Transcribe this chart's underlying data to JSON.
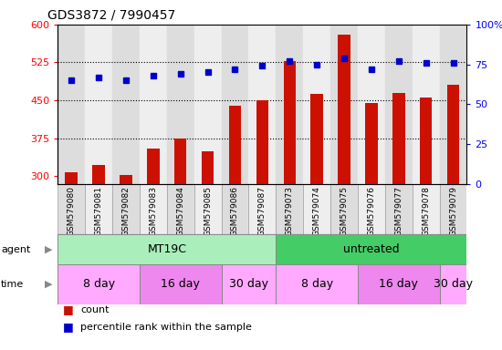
{
  "title": "GDS3872 / 7990457",
  "samples": [
    "GSM579080",
    "GSM579081",
    "GSM579082",
    "GSM579083",
    "GSM579084",
    "GSM579085",
    "GSM579086",
    "GSM579087",
    "GSM579073",
    "GSM579074",
    "GSM579075",
    "GSM579076",
    "GSM579077",
    "GSM579078",
    "GSM579079"
  ],
  "counts": [
    308,
    322,
    302,
    355,
    375,
    350,
    440,
    450,
    527,
    463,
    580,
    445,
    465,
    455,
    480
  ],
  "percentile": [
    65,
    67,
    65,
    68,
    69,
    70,
    72,
    74,
    77,
    75,
    79,
    72,
    77,
    76,
    76
  ],
  "ylim_left": [
    285,
    600
  ],
  "ylim_right": [
    0,
    100
  ],
  "yticks_left": [
    300,
    375,
    450,
    525,
    600
  ],
  "yticks_right": [
    0,
    25,
    50,
    75,
    100
  ],
  "bar_color": "#cc1100",
  "dot_color": "#0000cc",
  "col_colors": [
    "#dddddd",
    "#eeeeee"
  ],
  "grid_lines": [
    375,
    450,
    525
  ],
  "agent_groups": [
    {
      "label": "MT19C",
      "start": 0,
      "end": 8,
      "color": "#aaeebb"
    },
    {
      "label": "untreated",
      "start": 8,
      "end": 15,
      "color": "#44cc66"
    }
  ],
  "time_groups": [
    {
      "label": "8 day",
      "start": 0,
      "end": 3,
      "color": "#ffaaff"
    },
    {
      "label": "16 day",
      "start": 3,
      "end": 6,
      "color": "#ee88ee"
    },
    {
      "label": "30 day",
      "start": 6,
      "end": 8,
      "color": "#ffaaff"
    },
    {
      "label": "8 day",
      "start": 8,
      "end": 11,
      "color": "#ffaaff"
    },
    {
      "label": "16 day",
      "start": 11,
      "end": 14,
      "color": "#ee88ee"
    },
    {
      "label": "30 day",
      "start": 14,
      "end": 15,
      "color": "#ffaaff"
    }
  ],
  "legend_count_color": "#cc1100",
  "legend_pct_color": "#0000cc",
  "legend_count_label": "count",
  "legend_pct_label": "percentile rank within the sample"
}
